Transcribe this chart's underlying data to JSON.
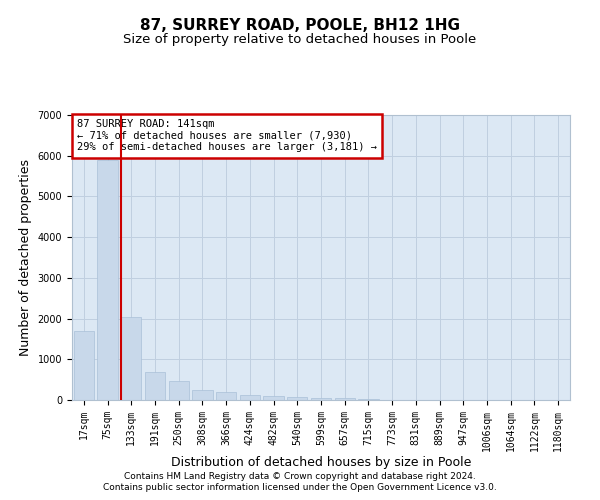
{
  "title": "87, SURREY ROAD, POOLE, BH12 1HG",
  "subtitle": "Size of property relative to detached houses in Poole",
  "xlabel": "Distribution of detached houses by size in Poole",
  "ylabel": "Number of detached properties",
  "categories": [
    "17sqm",
    "75sqm",
    "133sqm",
    "191sqm",
    "250sqm",
    "308sqm",
    "366sqm",
    "424sqm",
    "482sqm",
    "540sqm",
    "599sqm",
    "657sqm",
    "715sqm",
    "773sqm",
    "831sqm",
    "889sqm",
    "947sqm",
    "1006sqm",
    "1064sqm",
    "1122sqm",
    "1180sqm"
  ],
  "values": [
    1700,
    5900,
    2050,
    700,
    470,
    250,
    185,
    130,
    90,
    70,
    60,
    50,
    30,
    0,
    0,
    0,
    0,
    0,
    0,
    0,
    0
  ],
  "bar_color": "#c8d8ea",
  "bar_edge_color": "#aac0d8",
  "red_line_index": 2,
  "annotation_text": "87 SURREY ROAD: 141sqm\n← 71% of detached houses are smaller (7,930)\n29% of semi-detached houses are larger (3,181) →",
  "annotation_box_facecolor": "#ffffff",
  "annotation_box_edgecolor": "#cc0000",
  "ylim": [
    0,
    7000
  ],
  "yticks": [
    0,
    1000,
    2000,
    3000,
    4000,
    5000,
    6000,
    7000
  ],
  "grid_color": "#c0cfe0",
  "plot_bg_color": "#dce8f4",
  "footer_line1": "Contains HM Land Registry data © Crown copyright and database right 2024.",
  "footer_line2": "Contains public sector information licensed under the Open Government Licence v3.0.",
  "title_fontsize": 11,
  "subtitle_fontsize": 9.5,
  "tick_fontsize": 7,
  "label_fontsize": 9,
  "footer_fontsize": 6.5
}
